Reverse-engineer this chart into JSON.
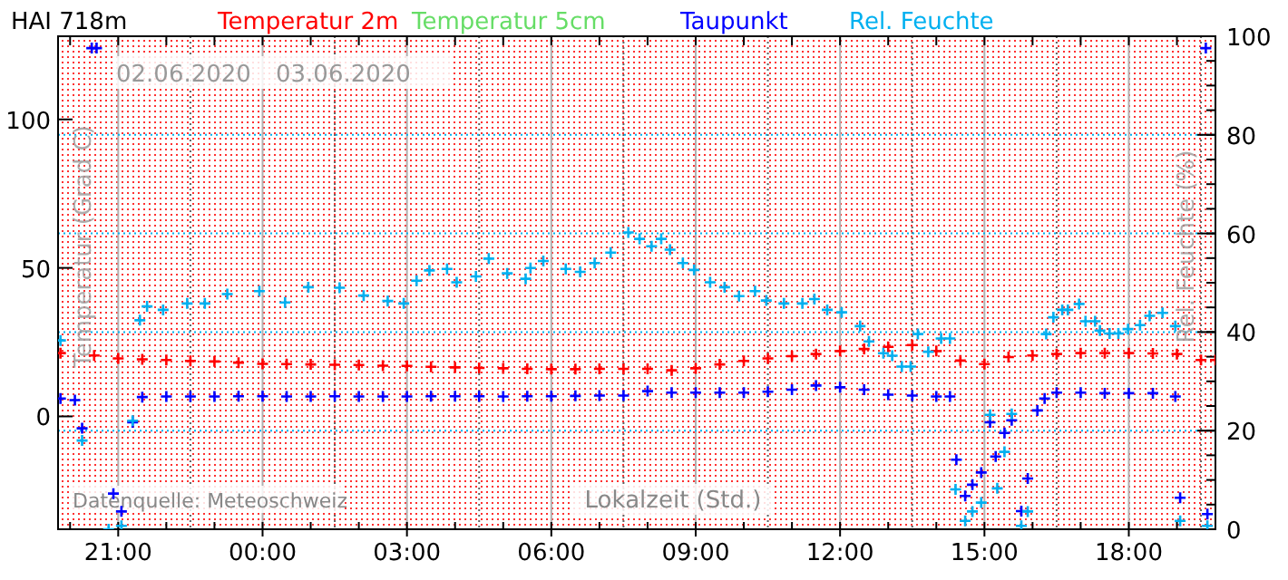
{
  "chart_data": {
    "type": "scatter",
    "title": "HAI   718m",
    "xlabel": "Lokalzeit (Std.)",
    "ylabel": "Temperatur (Grad C)",
    "y2label": "Rel. Feuchte (%)",
    "annotations": [
      "02.06.2020",
      "03.06.2020",
      "Datenquelle: Meteoschweiz"
    ],
    "xlim": [
      "2020-06-02T19:45",
      "2020-06-03T19:48"
    ],
    "xticks": [
      {
        "value": "2020-06-02T21:00",
        "label": "21:00"
      },
      {
        "value": "2020-06-03T00:00",
        "label": "00:00"
      },
      {
        "value": "2020-06-03T03:00",
        "label": "03:00"
      },
      {
        "value": "2020-06-03T06:00",
        "label": "06:00"
      },
      {
        "value": "2020-06-03T09:00",
        "label": "09:00"
      },
      {
        "value": "2020-06-03T12:00",
        "label": "12:00"
      },
      {
        "value": "2020-06-03T15:00",
        "label": "15:00"
      },
      {
        "value": "2020-06-03T18:00",
        "label": "18:00"
      }
    ],
    "ylim": [
      -38,
      128
    ],
    "yticks": [
      0,
      50,
      100
    ],
    "y2lim": [
      0,
      100
    ],
    "y2ticks": [
      0,
      20,
      40,
      60,
      80,
      100
    ],
    "grid": true,
    "legend": "top",
    "marker": "cross",
    "series": [
      {
        "name": "Temperatur 2m",
        "color": "#ff0000",
        "x": [
          "2020-06-02T19:48",
          "2020-06-02T20:30",
          "2020-06-02T21:00",
          "2020-06-02T21:30",
          "2020-06-02T22:00",
          "2020-06-02T22:30",
          "2020-06-02T23:00",
          "2020-06-02T23:30",
          "2020-06-03T00:00",
          "2020-06-03T00:30",
          "2020-06-03T01:00",
          "2020-06-03T01:30",
          "2020-06-03T02:00",
          "2020-06-03T02:30",
          "2020-06-03T03:00",
          "2020-06-03T03:30",
          "2020-06-03T04:00",
          "2020-06-03T04:30",
          "2020-06-03T05:00",
          "2020-06-03T05:30",
          "2020-06-03T06:00",
          "2020-06-03T06:30",
          "2020-06-03T07:00",
          "2020-06-03T07:30",
          "2020-06-03T08:00",
          "2020-06-03T08:30",
          "2020-06-03T09:00",
          "2020-06-03T09:30",
          "2020-06-03T10:00",
          "2020-06-03T10:30",
          "2020-06-03T11:00",
          "2020-06-03T11:30",
          "2020-06-03T12:00",
          "2020-06-03T12:30",
          "2020-06-03T13:00",
          "2020-06-03T13:30",
          "2020-06-03T14:00",
          "2020-06-03T14:30",
          "2020-06-03T15:00",
          "2020-06-03T15:30",
          "2020-06-03T16:00",
          "2020-06-03T16:30",
          "2020-06-03T17:00",
          "2020-06-03T17:30",
          "2020-06-03T18:00",
          "2020-06-03T18:30",
          "2020-06-03T19:00",
          "2020-06-03T19:30",
          "2020-06-03T19:48"
        ],
        "values": [
          21.3,
          20.5,
          19.5,
          19.2,
          19,
          18.7,
          18.5,
          18.1,
          17.7,
          17.6,
          17.5,
          17.4,
          17.3,
          17.1,
          17,
          16.7,
          16.5,
          16.3,
          16.2,
          16,
          15.9,
          15.9,
          16,
          16,
          16,
          15.5,
          16.2,
          17.5,
          18.7,
          19.5,
          20.3,
          21,
          22,
          22.7,
          23.4,
          24,
          22,
          18.8,
          17.6,
          20,
          20.5,
          21,
          21.3,
          21.3,
          21.3,
          21.2,
          21,
          19,
          19
        ]
      },
      {
        "name": "Temperatur 5cm",
        "color": "#66dd66"
      },
      {
        "name": "Taupunkt",
        "color": "#0000ff",
        "x": [
          "2020-06-02T19:48",
          "2020-06-02T20:06",
          "2020-06-02T20:15",
          "2020-06-02T20:27",
          "2020-06-02T20:33",
          "2020-06-02T20:54",
          "2020-06-02T21:04",
          "2020-06-02T21:18",
          "2020-06-02T21:30",
          "2020-06-02T22:00",
          "2020-06-02T22:30",
          "2020-06-02T23:00",
          "2020-06-02T23:30",
          "2020-06-03T00:00",
          "2020-06-03T00:30",
          "2020-06-03T01:00",
          "2020-06-03T01:30",
          "2020-06-03T02:00",
          "2020-06-03T02:30",
          "2020-06-03T03:00",
          "2020-06-03T03:30",
          "2020-06-03T04:00",
          "2020-06-03T04:30",
          "2020-06-03T05:00",
          "2020-06-03T05:30",
          "2020-06-03T06:00",
          "2020-06-03T06:30",
          "2020-06-03T07:00",
          "2020-06-03T07:30",
          "2020-06-03T08:00",
          "2020-06-03T08:30",
          "2020-06-03T09:00",
          "2020-06-03T09:30",
          "2020-06-03T10:00",
          "2020-06-03T10:30",
          "2020-06-03T11:00",
          "2020-06-03T11:30",
          "2020-06-03T12:00",
          "2020-06-03T12:30",
          "2020-06-03T13:00",
          "2020-06-03T13:30",
          "2020-06-03T14:00",
          "2020-06-03T14:17",
          "2020-06-03T14:25",
          "2020-06-03T14:36",
          "2020-06-03T14:45",
          "2020-06-03T14:56",
          "2020-06-03T15:07",
          "2020-06-03T15:14",
          "2020-06-03T15:25",
          "2020-06-03T15:34",
          "2020-06-03T15:46",
          "2020-06-03T15:54",
          "2020-06-03T16:06",
          "2020-06-03T16:15",
          "2020-06-03T16:30",
          "2020-06-03T17:00",
          "2020-06-03T17:30",
          "2020-06-03T18:00",
          "2020-06-03T18:30",
          "2020-06-03T18:58",
          "2020-06-03T19:04",
          "2020-06-03T19:36",
          "2020-06-03T19:38"
        ],
        "values": [
          6,
          5.5,
          -4,
          124,
          124,
          -26,
          -32,
          -2,
          6.5,
          6.7,
          6.7,
          6.7,
          6.8,
          6.8,
          6.7,
          6.7,
          6.8,
          6.7,
          6.7,
          6.7,
          6.8,
          6.8,
          6.8,
          6.7,
          6.8,
          6.8,
          6.9,
          7,
          7,
          8.5,
          8,
          8,
          8,
          8,
          8.3,
          9,
          10.4,
          9.8,
          9,
          7.3,
          7,
          6.7,
          6.7,
          -14.6,
          -26.8,
          -23,
          -18.9,
          -2,
          -13.5,
          -5.6,
          -1.3,
          -31.9,
          -20.9,
          2,
          6,
          8,
          8,
          7.8,
          7.8,
          7.8,
          6.7,
          -27.4,
          124,
          -32.9
        ]
      },
      {
        "name": "Rel. Feuchte",
        "color": "#00b0f0",
        "axis": "y2",
        "x": [
          "2020-06-02T19:48",
          "2020-06-02T20:15",
          "2020-06-02T20:48",
          "2020-06-02T21:04",
          "2020-06-02T21:18",
          "2020-06-02T21:27",
          "2020-06-02T21:36",
          "2020-06-02T21:56",
          "2020-06-02T22:26",
          "2020-06-02T22:48",
          "2020-06-02T23:16",
          "2020-06-02T23:56",
          "2020-06-03T00:28",
          "2020-06-03T00:57",
          "2020-06-03T01:36",
          "2020-06-03T02:06",
          "2020-06-03T02:36",
          "2020-06-03T02:56",
          "2020-06-03T03:12",
          "2020-06-03T03:28",
          "2020-06-03T03:50",
          "2020-06-03T04:02",
          "2020-06-03T04:26",
          "2020-06-03T04:42",
          "2020-06-03T05:05",
          "2020-06-03T05:28",
          "2020-06-03T05:34",
          "2020-06-03T05:50",
          "2020-06-03T06:18",
          "2020-06-03T06:36",
          "2020-06-03T06:54",
          "2020-06-03T07:14",
          "2020-06-03T07:36",
          "2020-06-03T07:50",
          "2020-06-03T08:05",
          "2020-06-03T08:17",
          "2020-06-03T08:28",
          "2020-06-03T08:44",
          "2020-06-03T08:58",
          "2020-06-03T09:18",
          "2020-06-03T09:36",
          "2020-06-03T09:54",
          "2020-06-03T10:14",
          "2020-06-03T10:28",
          "2020-06-03T10:50",
          "2020-06-03T11:13",
          "2020-06-03T11:28",
          "2020-06-03T11:44",
          "2020-06-03T12:02",
          "2020-06-03T12:25",
          "2020-06-03T12:36",
          "2020-06-03T12:54",
          "2020-06-03T13:05",
          "2020-06-03T13:17",
          "2020-06-03T13:28",
          "2020-06-03T13:37",
          "2020-06-03T13:50",
          "2020-06-03T14:06",
          "2020-06-03T14:17",
          "2020-06-03T14:24",
          "2020-06-03T14:36",
          "2020-06-03T14:45",
          "2020-06-03T14:56",
          "2020-06-03T15:07",
          "2020-06-03T15:16",
          "2020-06-03T15:25",
          "2020-06-03T15:34",
          "2020-06-03T15:46",
          "2020-06-03T15:54",
          "2020-06-03T16:17",
          "2020-06-03T16:26",
          "2020-06-03T16:37",
          "2020-06-03T16:44",
          "2020-06-03T16:58",
          "2020-06-03T17:06",
          "2020-06-03T17:18",
          "2020-06-03T17:24",
          "2020-06-03T17:36",
          "2020-06-03T17:47",
          "2020-06-03T17:59",
          "2020-06-03T18:14",
          "2020-06-03T18:26",
          "2020-06-03T18:42",
          "2020-06-03T18:58",
          "2020-06-03T19:04",
          "2020-06-03T19:38"
        ],
        "values": [
          38.3,
          18,
          0,
          0.7,
          22,
          42.4,
          45.2,
          44.5,
          45.8,
          45.8,
          47.7,
          48.3,
          46,
          49.1,
          49,
          47.4,
          46.3,
          45.8,
          50.4,
          52.5,
          52.8,
          50.1,
          51.3,
          54.9,
          51.9,
          50.8,
          53,
          54.4,
          52.8,
          52.2,
          54,
          56.1,
          60.2,
          58.9,
          57.4,
          58.9,
          56.7,
          54,
          52.6,
          50.1,
          49.1,
          47.3,
          48.3,
          46.4,
          45.8,
          45.8,
          46.7,
          44.5,
          44,
          41.2,
          38.1,
          35.7,
          35.2,
          33,
          33,
          39.6,
          36,
          38.7,
          38.7,
          8.1,
          1.7,
          3.6,
          5.4,
          23.2,
          8.3,
          15.7,
          23.4,
          0.7,
          3.6,
          39.6,
          43,
          44.5,
          44.5,
          45.7,
          42.2,
          42.2,
          40.3,
          39.7,
          39.7,
          40.6,
          41.4,
          43.3,
          43.9,
          41.2,
          1.7,
          0.7
        ]
      }
    ]
  }
}
